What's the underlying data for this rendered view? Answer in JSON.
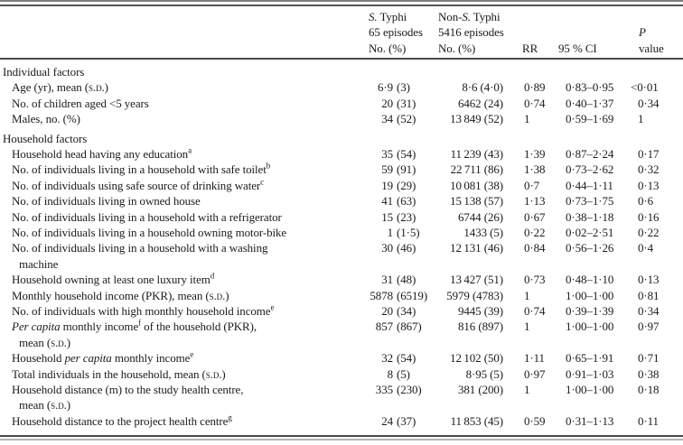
{
  "header": {
    "styphi_l1": "<i>S.</i> Typhi",
    "styphi_l2": "65 episodes",
    "styphi_l3": "No. (%)",
    "nonstyphi_l1": "Non-<i>S.</i> Typhi",
    "nonstyphi_l2": "5416 episodes",
    "nonstyphi_l3": "No. (%)",
    "rr": "RR",
    "ci": "95 % CI",
    "p_l1": "<i>P</i>",
    "p_l2": "value"
  },
  "rows": [
    {
      "section": true,
      "label": "Individual factors"
    },
    {
      "label": "Age (yr), mean (<span class=\"sc\">s.d.</span>)",
      "c1": "6·9 (3)",
      "c2": "8·6 (4·0)",
      "rr": "0·89",
      "ci": "0·83–0·95",
      "p": "<0·01"
    },
    {
      "label": "No. of children aged &lt;5 years",
      "c1": "20 (31)",
      "c2": "6462 (24)",
      "rr": "0·74",
      "ci": "0·40–1·37",
      "p": "0·34"
    },
    {
      "label": "Males, no. (%)",
      "c1": "34 (52)",
      "c2": "13 849 (52)",
      "rr": "1",
      "ci": "0·59–1·69",
      "p": "1"
    },
    {
      "section": true,
      "gap": true,
      "label": "Household factors"
    },
    {
      "label": "Household head having any education<sup>a</sup>",
      "c1": "35 (54)",
      "c2": "11 239 (43)",
      "rr": "1·39",
      "ci": "0·87–2·24",
      "p": "0·17"
    },
    {
      "label": "No. of individuals living in a household with safe toilet<sup>b</sup>",
      "c1": "59 (91)",
      "c2": "22 711 (86)",
      "rr": "1·38",
      "ci": "0·73–2·62",
      "p": "0·32"
    },
    {
      "label": "No. of individuals using safe source of drinking water<sup>c</sup>",
      "c1": "19 (29)",
      "c2": "10 081 (38)",
      "rr": "0·7",
      "ci": "0·44–1·11",
      "p": "0·13"
    },
    {
      "label": "No. of individuals living in owned house",
      "c1": "41 (63)",
      "c2": "15 138 (57)",
      "rr": "1·13",
      "ci": "0·73–1·75",
      "p": "0·6"
    },
    {
      "label": "No. of individuals living in a household with a refrigerator",
      "c1": "15 (23)",
      "c2": "6744 (26)",
      "rr": "0·67",
      "ci": "0·38–1·18",
      "p": "0·16"
    },
    {
      "label": "No. of individuals living in a household owning motor-bike",
      "c1": "1 (1·5)",
      "c2": "1433 (5)",
      "rr": "0·22",
      "ci": "0·02–2·51",
      "p": "0·22"
    },
    {
      "label": "No. of individuals living in a household with a washing<br>machine",
      "c1": "30 (46)",
      "c2": "12 131 (46)",
      "rr": "0·84",
      "ci": "0·56–1·26",
      "p": "0·4"
    },
    {
      "label": "Household owning at least one luxury item<sup>d</sup>",
      "c1": "31 (48)",
      "c2": "13 427 (51)",
      "rr": "0·73",
      "ci": "0·48–1·10",
      "p": "0·13"
    },
    {
      "label": "Monthly household income (PKR), mean (<span class=\"sc\">s.d.</span>)",
      "c1": "5878 (6519)",
      "c2": "5979 (4783)",
      "rr": "1",
      "ci": "1·00–1·00",
      "p": "0·81"
    },
    {
      "label": "No. of individuals with high monthly household income<sup>e</sup>",
      "c1": "20 (34)",
      "c2": "9445 (39)",
      "rr": "0·74",
      "ci": "0·39–1·39",
      "p": "0·34"
    },
    {
      "label": "<i>Per capita</i> monthly income<sup>f</sup> of the household (PKR),<br>mean (<span class=\"sc\">s.d.</span>)",
      "c1": "857 (867)",
      "c2": "816 (897)",
      "rr": "1",
      "ci": "1·00–1·00",
      "p": "0·97"
    },
    {
      "label": "Household <i>per capita</i> monthly income<sup>e</sup>",
      "c1": "32 (54)",
      "c2": "12 102 (50)",
      "rr": "1·11",
      "ci": "0·65–1·91",
      "p": "0·71"
    },
    {
      "label": "Total individuals in the household, mean (<span class=\"sc\">s.d.</span>)",
      "c1": "8 (5)",
      "c2": "8·95 (5)",
      "rr": "0·97",
      "ci": "0·91–1·03",
      "p": "0·38"
    },
    {
      "label": "Household distance (m) to the study health centre,<br>mean (<span class=\"sc\">s.d.</span>)",
      "c1": "335 (230)",
      "c2": "381 (200)",
      "rr": "1",
      "ci": "1·00–1·00",
      "p": "0·18"
    },
    {
      "label": "Household distance to the project health centre<sup>g</sup>",
      "c1": "24 (37)",
      "c2": "11 853 (45)",
      "rr": "0·59",
      "ci": "0·31–1·13",
      "p": "0·11"
    }
  ]
}
